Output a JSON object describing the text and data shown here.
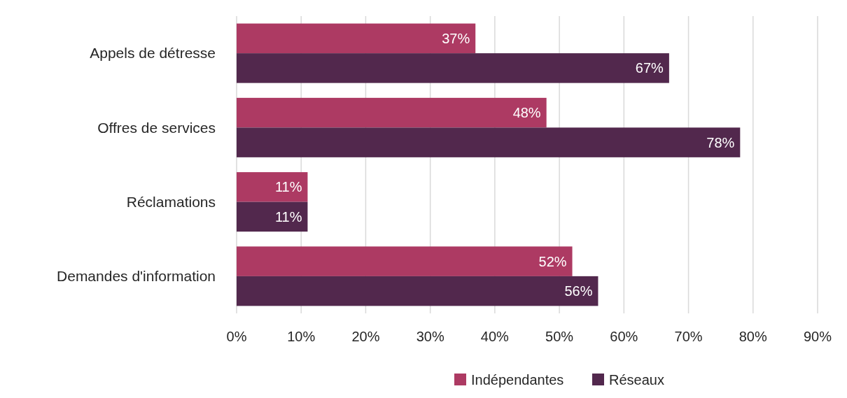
{
  "chart_data": {
    "type": "bar",
    "orientation": "horizontal",
    "categories": [
      "Appels de détresse",
      "Offres de services",
      "Réclamations",
      "Demandes d'information"
    ],
    "series": [
      {
        "name": "Indépendantes",
        "color": "#ad3a63",
        "values": [
          37,
          48,
          11,
          52
        ],
        "value_labels": [
          "37%",
          "48%",
          "11%",
          "52%"
        ]
      },
      {
        "name": "Réseaux",
        "color": "#52284d",
        "values": [
          67,
          78,
          11,
          56
        ],
        "value_labels": [
          "67%",
          "78%",
          "11%",
          "56%"
        ]
      }
    ],
    "xlim": [
      0,
      90
    ],
    "xticks": [
      {
        "value": 0,
        "label": "0%"
      },
      {
        "value": 10,
        "label": "10%"
      },
      {
        "value": 20,
        "label": "20%"
      },
      {
        "value": 30,
        "label": "30%"
      },
      {
        "value": 40,
        "label": "40%"
      },
      {
        "value": 50,
        "label": "50%"
      },
      {
        "value": 60,
        "label": "60%"
      },
      {
        "value": 70,
        "label": "70%"
      },
      {
        "value": 80,
        "label": "80%"
      },
      {
        "value": 90,
        "label": "90%"
      }
    ],
    "grid": "x",
    "legend": "bottom"
  }
}
